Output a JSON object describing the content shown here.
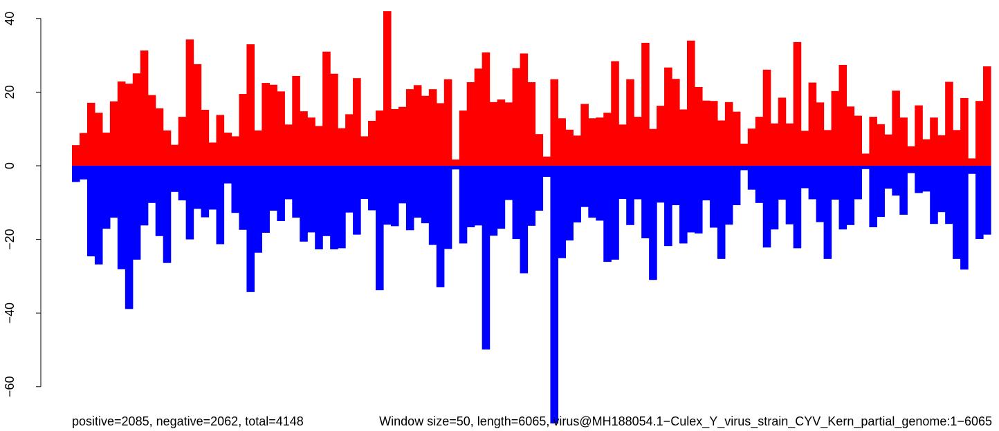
{
  "chart_data": {
    "type": "bar",
    "xlabel_left": "positive=2085, negative=2062, total=4148",
    "xlabel_right": "Window size=50, length=6065, virus@MH188054.1−Culex_Y_virus_strain_CYV_Kern_partial_genome:1−6065",
    "ylim": [
      -65,
      42
    ],
    "yticks": [
      40,
      20,
      0,
      -20,
      -40,
      -60
    ],
    "ytick_labels": [
      "40",
      "20",
      "0",
      "−20",
      "−40",
      "−60"
    ],
    "series": [
      {
        "color": "#ff0000",
        "values": [
          5.6,
          8.9,
          17.1,
          14.4,
          9.0,
          17.5,
          22.9,
          22.3,
          25.1,
          31.3,
          19.2,
          15.6,
          9.6,
          5.7,
          13.3,
          34.3,
          27.6,
          15.2,
          6.3,
          13.8,
          9.0,
          8.0,
          19.5,
          33.0,
          9.6,
          22.5,
          22.0,
          20.2,
          11.2,
          24.4,
          14.8,
          13.1,
          10.8,
          31.0,
          25.0,
          10.2,
          14.0,
          23.8,
          8.0,
          12.2,
          15.0,
          42.0,
          15.4,
          16.0,
          20.8,
          21.9,
          19.0,
          20.8,
          17.0,
          23.5,
          1.7,
          15.0,
          22.7,
          26.4,
          30.8,
          17.3,
          18.0,
          17.2,
          26.5,
          30.5,
          22.7,
          8.6,
          2.5,
          23.5,
          12.9,
          9.8,
          8.2,
          16.8,
          12.9,
          13.1,
          14.4,
          28.4,
          11.2,
          23.5,
          13.3,
          33.4,
          10.0,
          16.3,
          26.7,
          23.6,
          15.3,
          34.0,
          21.4,
          17.7,
          17.6,
          12.3,
          17.3,
          14.7,
          6.0,
          10.1,
          13.3,
          26.1,
          11.5,
          18.5,
          11.5,
          33.6,
          9.5,
          22.6,
          17.2,
          9.7,
          20.3,
          27.4,
          16.1,
          13.6,
          3.3,
          13.3,
          11.3,
          8.5,
          20.4,
          13.1,
          5.3,
          16.4,
          7.2,
          13.1,
          8.3,
          22.8,
          9.7,
          18.4,
          2.0,
          17.6,
          27.0
        ]
      },
      {
        "color": "#0000ff",
        "values": [
          -4.4,
          -3.7,
          -24.6,
          -26.8,
          -17.1,
          -14.1,
          -28.1,
          -38.9,
          -25.5,
          -16.2,
          -10.1,
          -19.1,
          -26.4,
          -7.1,
          -9.4,
          -20.0,
          -11.7,
          -14.0,
          -11.9,
          -21.3,
          -4.8,
          -12.8,
          -17.4,
          -34.3,
          -23.6,
          -18.2,
          -12.2,
          -15.0,
          -9.1,
          -14.1,
          -20.6,
          -18.1,
          -22.7,
          -19.1,
          -22.7,
          -22.4,
          -12.7,
          -18.7,
          -9.0,
          -12.1,
          -33.8,
          -16.0,
          -16.4,
          -10.2,
          -17.5,
          -14.1,
          -15.6,
          -21.5,
          -33.0,
          -22.6,
          -1.0,
          -21.1,
          -16.7,
          -16.2,
          -49.9,
          -19.0,
          -17.1,
          -9.3,
          -19.9,
          -29.2,
          -16.3,
          -12.2,
          -3.0,
          -70.0,
          -25.1,
          -20.3,
          -15.4,
          -11.2,
          -14.1,
          -14.9,
          -26.1,
          -25.5,
          -9.0,
          -16.1,
          -9.1,
          -19.7,
          -31.0,
          -10.0,
          -21.8,
          -10.7,
          -21.1,
          -18.1,
          -18.4,
          -9.4,
          -16.8,
          -25.3,
          -16.0,
          -10.7,
          -1.2,
          -6.5,
          -10.1,
          -22.2,
          -17.3,
          -9.2,
          -15.9,
          -22.4,
          -6.1,
          -9.1,
          -15.3,
          -25.3,
          -9.2,
          -17.3,
          -16.1,
          -9.1,
          -0.9,
          -16.7,
          -13.9,
          -6.2,
          -8.1,
          -13.3,
          -2.0,
          -7.4,
          -7.0,
          -15.8,
          -12.6,
          -15.8,
          -25.3,
          -28.2,
          -2.2,
          -19.9,
          -18.7
        ]
      }
    ]
  }
}
